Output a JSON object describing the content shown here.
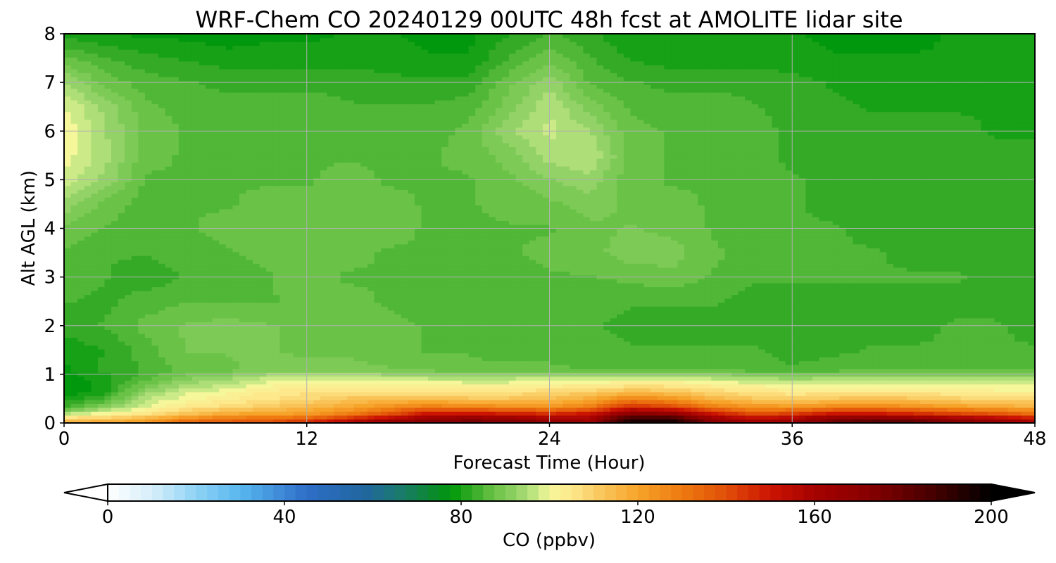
{
  "chart_data": {
    "type": "heatmap",
    "title": "WRF-Chem CO  20240129 00UTC 48h fcst at AMOLITE lidar site",
    "xlabel": "Forecast Time (Hour)",
    "ylabel": "Alt AGL (km)",
    "xlim": [
      0,
      48
    ],
    "ylim": [
      0,
      8
    ],
    "xticks": [
      "0",
      "12",
      "24",
      "36",
      "48"
    ],
    "yticks": [
      "0",
      "1",
      "2",
      "3",
      "4",
      "5",
      "6",
      "7",
      "8"
    ],
    "grid": true,
    "x_hours": [
      0,
      2,
      4,
      6,
      8,
      10,
      12,
      14,
      16,
      18,
      20,
      22,
      24,
      26,
      28,
      30,
      32,
      34,
      36,
      38,
      40,
      42,
      44,
      46,
      48
    ],
    "y_km": [
      0,
      0.1,
      0.2,
      0.35,
      0.5,
      0.65,
      0.8,
      0.95,
      1.1,
      1.5,
      2,
      2.5,
      3,
      3.5,
      4,
      4.5,
      5,
      5.5,
      6,
      6.5,
      7,
      7.5,
      8
    ],
    "values_ppbv": [
      [
        120,
        121,
        125,
        138,
        140,
        142,
        150,
        160,
        170,
        175,
        178,
        178,
        170,
        165,
        200,
        200,
        175,
        162,
        168,
        180,
        188,
        186,
        178,
        170,
        162
      ],
      [
        108,
        110,
        115,
        125,
        130,
        132,
        135,
        145,
        155,
        165,
        168,
        166,
        160,
        160,
        190,
        190,
        165,
        155,
        158,
        170,
        172,
        168,
        162,
        158,
        150
      ],
      [
        95,
        100,
        105,
        112,
        118,
        120,
        122,
        128,
        138,
        150,
        150,
        148,
        145,
        150,
        170,
        168,
        150,
        140,
        142,
        150,
        150,
        146,
        142,
        138,
        132
      ],
      [
        82,
        90,
        98,
        104,
        107,
        110,
        114,
        118,
        124,
        128,
        126,
        124,
        122,
        128,
        145,
        140,
        128,
        122,
        122,
        125,
        126,
        124,
        120,
        118,
        116
      ],
      [
        80,
        84,
        96,
        100,
        103,
        106,
        108,
        112,
        114,
        114,
        112,
        112,
        114,
        118,
        128,
        124,
        116,
        112,
        110,
        112,
        114,
        112,
        110,
        108,
        108
      ],
      [
        76,
        80,
        92,
        98,
        100,
        104,
        106,
        106,
        106,
        106,
        106,
        106,
        108,
        110,
        114,
        112,
        108,
        106,
        104,
        104,
        104,
        104,
        104,
        102,
        102
      ],
      [
        76,
        80,
        88,
        94,
        96,
        100,
        102,
        102,
        102,
        101,
        100,
        100,
        102,
        102,
        104,
        104,
        102,
        100,
        99,
        99,
        99,
        99,
        98,
        98,
        98
      ],
      [
        78,
        80,
        85,
        90,
        92,
        96,
        98,
        96,
        96,
        95,
        95,
        95,
        96,
        96,
        96,
        96,
        95,
        93,
        92,
        93,
        93,
        93,
        93,
        93,
        93
      ],
      [
        78,
        82,
        84,
        87,
        88,
        90,
        90,
        90,
        89,
        88,
        87,
        87,
        87,
        86,
        86,
        86,
        86,
        85,
        84,
        85,
        86,
        86,
        86,
        86,
        86
      ],
      [
        80,
        81,
        85,
        89,
        89,
        89,
        88,
        88,
        87,
        86,
        86,
        85,
        85,
        85,
        84,
        84,
        84,
        84,
        83,
        83,
        84,
        84,
        84,
        84,
        84
      ],
      [
        82,
        84,
        87,
        89,
        90,
        89,
        88,
        87,
        87,
        86,
        85,
        84,
        84,
        84,
        83,
        83,
        83,
        83,
        83,
        83,
        83,
        83,
        84,
        84,
        83
      ],
      [
        84,
        83,
        85,
        86,
        86,
        86,
        87,
        87,
        86,
        85,
        85,
        84,
        84,
        85,
        84,
        84,
        84,
        83,
        83,
        83,
        83,
        83,
        83,
        83,
        83
      ],
      [
        85,
        84,
        82,
        84,
        85,
        86,
        87,
        86,
        86,
        86,
        85,
        85,
        86,
        86,
        87,
        88,
        86,
        84,
        84,
        84,
        84,
        84,
        84,
        83,
        83
      ],
      [
        86,
        84,
        84,
        85,
        86,
        87,
        87,
        87,
        86,
        86,
        86,
        86,
        87,
        88,
        90,
        90,
        87,
        85,
        84,
        84,
        84,
        83,
        83,
        83,
        83
      ],
      [
        88,
        86,
        85,
        86,
        87,
        88,
        87,
        87,
        87,
        86,
        86,
        86,
        86,
        88,
        89,
        88,
        86,
        84,
        84,
        84,
        83,
        83,
        83,
        82,
        82
      ],
      [
        93,
        88,
        85,
        86,
        86,
        87,
        87,
        88,
        87,
        86,
        86,
        87,
        88,
        90,
        88,
        87,
        86,
        85,
        84,
        83,
        83,
        82,
        82,
        82,
        82
      ],
      [
        98,
        93,
        86,
        86,
        86,
        86,
        86,
        87,
        86,
        86,
        86,
        88,
        91,
        93,
        87,
        86,
        86,
        85,
        84,
        83,
        83,
        82,
        82,
        82,
        82
      ],
      [
        100,
        95,
        87,
        86,
        86,
        86,
        86,
        86,
        86,
        86,
        87,
        90,
        95,
        96,
        88,
        86,
        86,
        85,
        83,
        83,
        82,
        82,
        82,
        82,
        82
      ],
      [
        101,
        94,
        88,
        86,
        86,
        85,
        85,
        85,
        85,
        85,
        87,
        93,
        97,
        94,
        87,
        86,
        86,
        85,
        83,
        83,
        82,
        82,
        82,
        81,
        81
      ],
      [
        99,
        93,
        87,
        85,
        85,
        85,
        85,
        84,
        84,
        84,
        85,
        90,
        96,
        90,
        86,
        85,
        85,
        84,
        83,
        82,
        81,
        81,
        81,
        81,
        81
      ],
      [
        94,
        88,
        85,
        84,
        83,
        83,
        83,
        83,
        82,
        82,
        82,
        88,
        93,
        86,
        84,
        83,
        83,
        83,
        82,
        81,
        80,
        80,
        80,
        80,
        80
      ],
      [
        87,
        84,
        82,
        81,
        80,
        80,
        80,
        80,
        80,
        79,
        79,
        84,
        88,
        84,
        81,
        80,
        80,
        80,
        80,
        79,
        79,
        79,
        79,
        79,
        79
      ],
      [
        80,
        79,
        78,
        78,
        77,
        78,
        78,
        79,
        79,
        78,
        78,
        81,
        84,
        82,
        79,
        79,
        79,
        79,
        79,
        78,
        77,
        78,
        79,
        79,
        79
      ]
    ],
    "colorbar": {
      "label": "CO  (ppbv)",
      "min": 0,
      "max": 200,
      "extend": "both",
      "ticks": [
        "0",
        "40",
        "80",
        "120",
        "160",
        "200"
      ],
      "stops": [
        {
          "v": 0,
          "c": "#ffffff"
        },
        {
          "v": 10,
          "c": "#d6eef9"
        },
        {
          "v": 20,
          "c": "#8fd2f5"
        },
        {
          "v": 30,
          "c": "#58b7ef"
        },
        {
          "v": 45,
          "c": "#2e6ec8"
        },
        {
          "v": 58,
          "c": "#2166a0"
        },
        {
          "v": 66,
          "c": "#1a7a6e"
        },
        {
          "v": 74,
          "c": "#0a8a2a"
        },
        {
          "v": 78,
          "c": "#009a0a"
        },
        {
          "v": 83,
          "c": "#3aac2a"
        },
        {
          "v": 87,
          "c": "#66c144"
        },
        {
          "v": 92,
          "c": "#8dd064"
        },
        {
          "v": 97,
          "c": "#c4e884"
        },
        {
          "v": 100,
          "c": "#f6f69a"
        },
        {
          "v": 105,
          "c": "#fde88c"
        },
        {
          "v": 112,
          "c": "#f9c55a"
        },
        {
          "v": 120,
          "c": "#f7a42a"
        },
        {
          "v": 130,
          "c": "#ee7a10"
        },
        {
          "v": 140,
          "c": "#e04e08"
        },
        {
          "v": 150,
          "c": "#cc1402"
        },
        {
          "v": 160,
          "c": "#a50200"
        },
        {
          "v": 172,
          "c": "#880000"
        },
        {
          "v": 185,
          "c": "#4e0000"
        },
        {
          "v": 200,
          "c": "#000000"
        }
      ]
    }
  }
}
